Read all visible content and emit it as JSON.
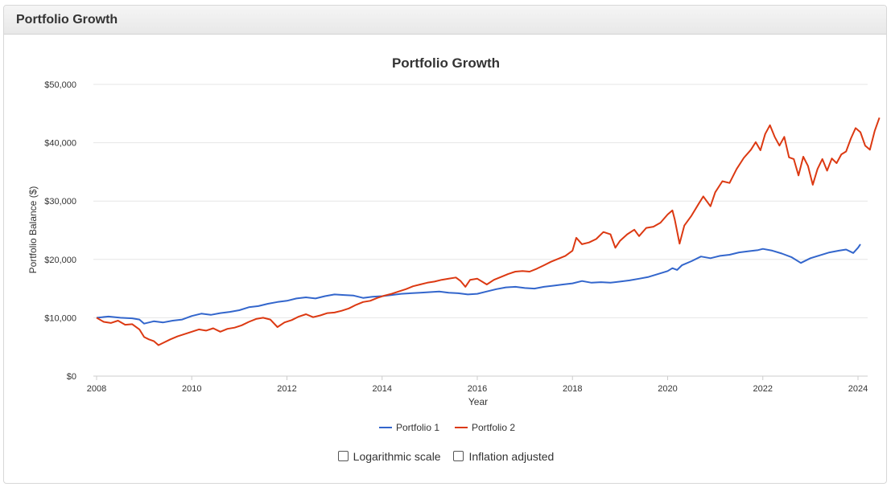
{
  "panel": {
    "heading": "Portfolio Growth"
  },
  "options": {
    "log_scale_label": "Logarithmic scale",
    "log_scale_checked": false,
    "inflation_label": "Inflation adjusted",
    "inflation_checked": false
  },
  "colors": {
    "portfolio1": "#3366cc",
    "portfolio2": "#dc3912",
    "grid": "#e6e6e6",
    "axis": "#cccccc"
  },
  "chart_data": {
    "type": "line",
    "title": "Portfolio Growth",
    "xlabel": "Year",
    "ylabel": "Portfolio Balance ($)",
    "xlim": [
      2008,
      2024.1
    ],
    "ylim": [
      0,
      50000
    ],
    "x_ticks": [
      "2008",
      "2010",
      "2012",
      "2014",
      "2016",
      "2018",
      "2020",
      "2022",
      "2024"
    ],
    "y_ticks": [
      "$0",
      "$10,000",
      "$20,000",
      "$30,000",
      "$40,000",
      "$50,000"
    ],
    "legend_position": "bottom",
    "grid": true,
    "series": [
      {
        "name": "Portfolio 1",
        "points": [
          [
            2008.0,
            10000
          ],
          [
            2008.25,
            10200
          ],
          [
            2008.5,
            10000
          ],
          [
            2008.75,
            9900
          ],
          [
            2008.9,
            9700
          ],
          [
            2009.0,
            9000
          ],
          [
            2009.2,
            9400
          ],
          [
            2009.4,
            9200
          ],
          [
            2009.6,
            9500
          ],
          [
            2009.8,
            9700
          ],
          [
            2010.0,
            10300
          ],
          [
            2010.2,
            10700
          ],
          [
            2010.4,
            10500
          ],
          [
            2010.6,
            10800
          ],
          [
            2010.8,
            11000
          ],
          [
            2011.0,
            11300
          ],
          [
            2011.2,
            11800
          ],
          [
            2011.4,
            12000
          ],
          [
            2011.6,
            12400
          ],
          [
            2011.8,
            12700
          ],
          [
            2012.0,
            12900
          ],
          [
            2012.2,
            13300
          ],
          [
            2012.4,
            13500
          ],
          [
            2012.6,
            13300
          ],
          [
            2012.8,
            13700
          ],
          [
            2013.0,
            14000
          ],
          [
            2013.2,
            13900
          ],
          [
            2013.4,
            13800
          ],
          [
            2013.6,
            13400
          ],
          [
            2013.8,
            13600
          ],
          [
            2014.0,
            13700
          ],
          [
            2014.2,
            13900
          ],
          [
            2014.4,
            14100
          ],
          [
            2014.6,
            14200
          ],
          [
            2014.8,
            14300
          ],
          [
            2015.0,
            14400
          ],
          [
            2015.2,
            14500
          ],
          [
            2015.4,
            14300
          ],
          [
            2015.6,
            14200
          ],
          [
            2015.8,
            14000
          ],
          [
            2016.0,
            14100
          ],
          [
            2016.2,
            14500
          ],
          [
            2016.4,
            14900
          ],
          [
            2016.6,
            15200
          ],
          [
            2016.8,
            15300
          ],
          [
            2017.0,
            15100
          ],
          [
            2017.2,
            15000
          ],
          [
            2017.4,
            15300
          ],
          [
            2017.6,
            15500
          ],
          [
            2017.8,
            15700
          ],
          [
            2018.0,
            15900
          ],
          [
            2018.2,
            16300
          ],
          [
            2018.4,
            16000
          ],
          [
            2018.6,
            16100
          ],
          [
            2018.8,
            16000
          ],
          [
            2019.0,
            16200
          ],
          [
            2019.2,
            16400
          ],
          [
            2019.4,
            16700
          ],
          [
            2019.6,
            17000
          ],
          [
            2019.8,
            17500
          ],
          [
            2020.0,
            18000
          ],
          [
            2020.1,
            18500
          ],
          [
            2020.2,
            18200
          ],
          [
            2020.3,
            19000
          ],
          [
            2020.5,
            19700
          ],
          [
            2020.7,
            20500
          ],
          [
            2020.9,
            20200
          ],
          [
            2021.1,
            20600
          ],
          [
            2021.3,
            20800
          ],
          [
            2021.5,
            21200
          ],
          [
            2021.7,
            21400
          ],
          [
            2021.9,
            21600
          ],
          [
            2022.0,
            21800
          ],
          [
            2022.2,
            21500
          ],
          [
            2022.4,
            21000
          ],
          [
            2022.6,
            20400
          ],
          [
            2022.8,
            19400
          ],
          [
            2023.0,
            20200
          ],
          [
            2023.2,
            20700
          ],
          [
            2023.4,
            21200
          ],
          [
            2023.6,
            21500
          ],
          [
            2023.75,
            21700
          ],
          [
            2023.9,
            21100
          ],
          [
            2024.0,
            22000
          ],
          [
            2024.05,
            22600
          ]
        ]
      },
      {
        "name": "Portfolio 2",
        "points": [
          [
            2008.0,
            10000
          ],
          [
            2008.15,
            9300
          ],
          [
            2008.3,
            9100
          ],
          [
            2008.45,
            9500
          ],
          [
            2008.6,
            8800
          ],
          [
            2008.75,
            8900
          ],
          [
            2008.9,
            8000
          ],
          [
            2009.0,
            6700
          ],
          [
            2009.1,
            6300
          ],
          [
            2009.2,
            6000
          ],
          [
            2009.3,
            5300
          ],
          [
            2009.4,
            5700
          ],
          [
            2009.55,
            6300
          ],
          [
            2009.7,
            6800
          ],
          [
            2009.85,
            7200
          ],
          [
            2010.0,
            7600
          ],
          [
            2010.15,
            8000
          ],
          [
            2010.3,
            7800
          ],
          [
            2010.45,
            8200
          ],
          [
            2010.6,
            7600
          ],
          [
            2010.75,
            8100
          ],
          [
            2010.9,
            8300
          ],
          [
            2011.05,
            8700
          ],
          [
            2011.2,
            9300
          ],
          [
            2011.35,
            9800
          ],
          [
            2011.5,
            10000
          ],
          [
            2011.65,
            9700
          ],
          [
            2011.8,
            8400
          ],
          [
            2011.95,
            9200
          ],
          [
            2012.1,
            9600
          ],
          [
            2012.25,
            10200
          ],
          [
            2012.4,
            10600
          ],
          [
            2012.55,
            10100
          ],
          [
            2012.7,
            10400
          ],
          [
            2012.85,
            10800
          ],
          [
            2013.0,
            10900
          ],
          [
            2013.15,
            11200
          ],
          [
            2013.3,
            11600
          ],
          [
            2013.45,
            12200
          ],
          [
            2013.6,
            12700
          ],
          [
            2013.75,
            12900
          ],
          [
            2013.9,
            13400
          ],
          [
            2014.05,
            13800
          ],
          [
            2014.2,
            14100
          ],
          [
            2014.35,
            14500
          ],
          [
            2014.5,
            14900
          ],
          [
            2014.65,
            15400
          ],
          [
            2014.8,
            15700
          ],
          [
            2014.95,
            16000
          ],
          [
            2015.1,
            16200
          ],
          [
            2015.25,
            16500
          ],
          [
            2015.4,
            16700
          ],
          [
            2015.55,
            16900
          ],
          [
            2015.65,
            16300
          ],
          [
            2015.75,
            15300
          ],
          [
            2015.85,
            16500
          ],
          [
            2016.0,
            16700
          ],
          [
            2016.1,
            16200
          ],
          [
            2016.2,
            15700
          ],
          [
            2016.35,
            16500
          ],
          [
            2016.5,
            17000
          ],
          [
            2016.65,
            17500
          ],
          [
            2016.8,
            17900
          ],
          [
            2016.95,
            18000
          ],
          [
            2017.1,
            17900
          ],
          [
            2017.25,
            18400
          ],
          [
            2017.4,
            19000
          ],
          [
            2017.55,
            19600
          ],
          [
            2017.7,
            20100
          ],
          [
            2017.85,
            20600
          ],
          [
            2018.0,
            21500
          ],
          [
            2018.08,
            23700
          ],
          [
            2018.2,
            22600
          ],
          [
            2018.35,
            22900
          ],
          [
            2018.5,
            23500
          ],
          [
            2018.65,
            24700
          ],
          [
            2018.8,
            24300
          ],
          [
            2018.9,
            22000
          ],
          [
            2019.0,
            23200
          ],
          [
            2019.15,
            24300
          ],
          [
            2019.3,
            25100
          ],
          [
            2019.4,
            24000
          ],
          [
            2019.55,
            25400
          ],
          [
            2019.7,
            25600
          ],
          [
            2019.85,
            26300
          ],
          [
            2020.0,
            27700
          ],
          [
            2020.1,
            28400
          ],
          [
            2020.15,
            26800
          ],
          [
            2020.25,
            22700
          ],
          [
            2020.35,
            25800
          ],
          [
            2020.5,
            27500
          ],
          [
            2020.65,
            29500
          ],
          [
            2020.75,
            30800
          ],
          [
            2020.9,
            29100
          ],
          [
            2021.0,
            31500
          ],
          [
            2021.15,
            33400
          ],
          [
            2021.3,
            33100
          ],
          [
            2021.45,
            35500
          ],
          [
            2021.6,
            37400
          ],
          [
            2021.75,
            38800
          ],
          [
            2021.85,
            40100
          ],
          [
            2021.95,
            38700
          ],
          [
            2022.05,
            41500
          ],
          [
            2022.15,
            43000
          ],
          [
            2022.25,
            41000
          ],
          [
            2022.35,
            39500
          ],
          [
            2022.45,
            41000
          ],
          [
            2022.55,
            37500
          ],
          [
            2022.65,
            37200
          ],
          [
            2022.75,
            34400
          ],
          [
            2022.85,
            37600
          ],
          [
            2022.95,
            36000
          ],
          [
            2023.05,
            32800
          ],
          [
            2023.15,
            35500
          ],
          [
            2023.25,
            37200
          ],
          [
            2023.35,
            35200
          ],
          [
            2023.45,
            37300
          ],
          [
            2023.55,
            36500
          ],
          [
            2023.65,
            38000
          ],
          [
            2023.75,
            38500
          ],
          [
            2023.85,
            40700
          ],
          [
            2023.95,
            42500
          ],
          [
            2024.05,
            41800
          ],
          [
            2024.15,
            39500
          ],
          [
            2024.25,
            38800
          ],
          [
            2024.35,
            42000
          ],
          [
            2024.45,
            44300
          ]
        ]
      }
    ]
  }
}
